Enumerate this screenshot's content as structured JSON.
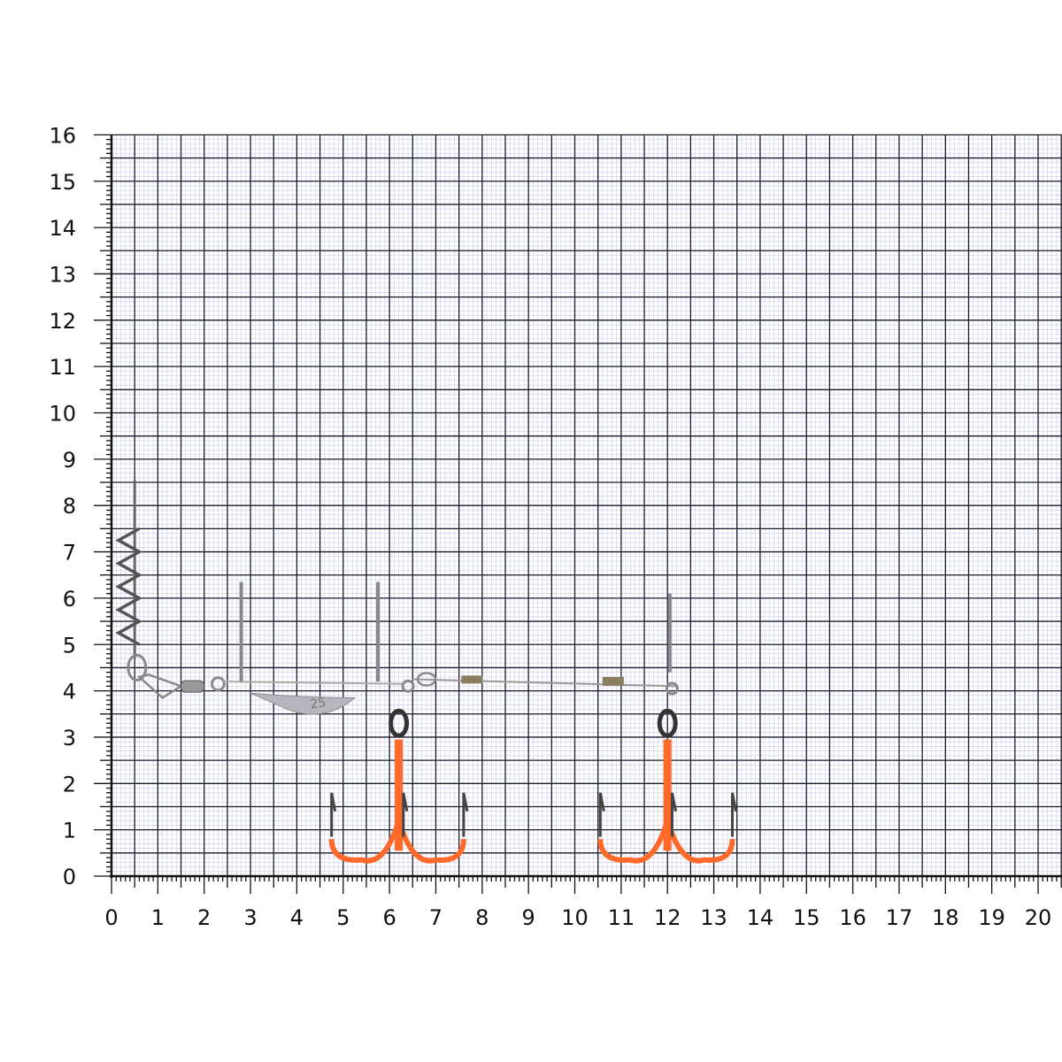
{
  "scene": {
    "description_type": "product photo on measurement grid",
    "unit_grid": "cm",
    "x_axis": {
      "min": 0,
      "max": 20,
      "tick_labels": [
        "0",
        "1",
        "2",
        "3",
        "4",
        "5",
        "6",
        "7",
        "8",
        "9",
        "10",
        "11",
        "12",
        "13",
        "14",
        "15",
        "16",
        "17",
        "18",
        "19",
        "20"
      ]
    },
    "y_axis": {
      "min": 0,
      "max": 16,
      "tick_labels": [
        "0",
        "1",
        "2",
        "3",
        "4",
        "5",
        "6",
        "7",
        "8",
        "9",
        "10",
        "11",
        "12",
        "13",
        "14",
        "15",
        "16"
      ]
    },
    "sinker_marking": "25",
    "colors": {
      "major_grid": "#1a1a2e",
      "minor_grid": "#c9cbe8",
      "hook_coating": "#ff6a2a",
      "metal": "#8a8a8a"
    }
  }
}
